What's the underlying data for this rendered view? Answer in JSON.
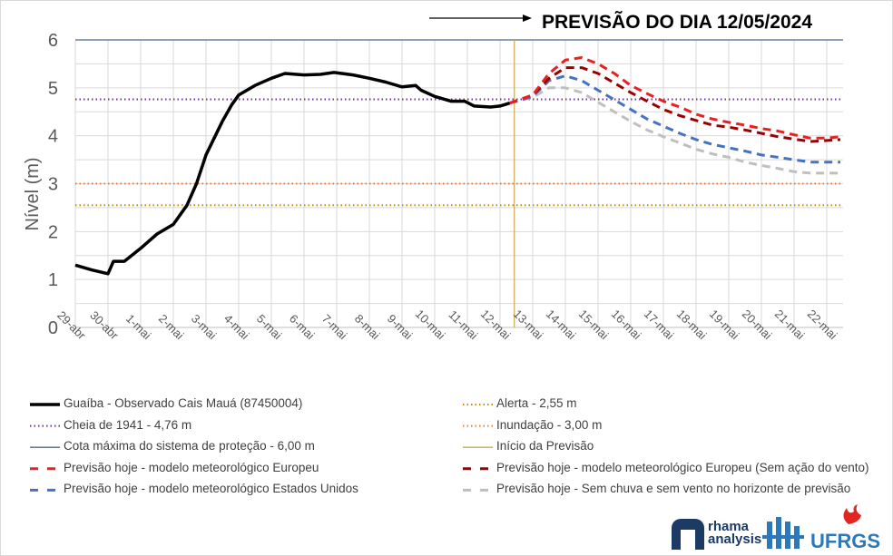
{
  "header": {
    "title": "PREVISÃO DO DIA 12/05/2024"
  },
  "logos": {
    "rhama": "rhama analysis",
    "iph": "IPH",
    "ufrgs": "UFRGS"
  },
  "chart_data": {
    "type": "line",
    "title": "PREVISÃO DO DIA 12/05/2024",
    "ylabel": "Nível (m)",
    "xlabel": "",
    "ylim": [
      0,
      6
    ],
    "yticks": [
      "0",
      "1",
      "2",
      "3",
      "4",
      "5",
      "6"
    ],
    "xlim": [
      "2024-04-29",
      "2024-05-22T12:00"
    ],
    "xticks": [
      "29-abr",
      "30-abr",
      "1-mai",
      "2-mai",
      "3-mai",
      "4-mai",
      "5-mai",
      "6-mai",
      "7-mai",
      "8-mai",
      "9-mai",
      "10-mai",
      "11-mai",
      "12-mai",
      "13-mai",
      "14-mai",
      "15-mai",
      "16-mai",
      "17-mai",
      "18-mai",
      "19-mai",
      "20-mai",
      "21-mai",
      "22-mai"
    ],
    "grid": true,
    "legend_position": "bottom",
    "reference_lines": [
      {
        "name": "Cheia de 1941 - 4,76 m",
        "y": 4.76,
        "color": "#7030a0",
        "style": "dotted"
      },
      {
        "name": "Alerta  - 2,55 m",
        "y": 2.55,
        "color": "#bf9000",
        "style": "dotted"
      },
      {
        "name": "Inundação - 3,00 m",
        "y": 3.0,
        "color": "#ed7d31",
        "style": "dotted"
      },
      {
        "name": "Cota máxima do sistema de proteção - 6,00 m",
        "y": 6.0,
        "color": "#44698f",
        "style": "solid"
      }
    ],
    "forecast_start": {
      "name": "Início da Previsão",
      "x": "2024-05-12T10:30",
      "color": "#c9a94a"
    },
    "series": [
      {
        "name": "Guaíba - Observado Cais Mauá (87450004)",
        "color": "#000000",
        "style": "solid",
        "x": [
          "2024-04-29",
          "2024-04-29T12:00",
          "2024-04-30",
          "2024-04-30T04:00",
          "2024-04-30T12:00",
          "2024-05-01",
          "2024-05-01T12:00",
          "2024-05-02",
          "2024-05-02T10:00",
          "2024-05-02T17:00",
          "2024-05-03",
          "2024-05-03T12:00",
          "2024-05-03T19:00",
          "2024-05-04",
          "2024-05-04T12:00",
          "2024-05-05",
          "2024-05-05T10:00",
          "2024-05-06",
          "2024-05-06T12:00",
          "2024-05-06T22:00",
          "2024-05-07T12:00",
          "2024-05-08",
          "2024-05-08T12:00",
          "2024-05-09",
          "2024-05-09T10:00",
          "2024-05-09T14:00",
          "2024-05-10",
          "2024-05-10T12:00",
          "2024-05-10T22:00",
          "2024-05-11T05:00",
          "2024-05-11T17:00",
          "2024-05-12",
          "2024-05-12T07:00"
        ],
        "y": [
          1.3,
          1.2,
          1.12,
          1.38,
          1.38,
          1.65,
          1.95,
          2.15,
          2.55,
          3.0,
          3.6,
          4.3,
          4.65,
          4.85,
          5.05,
          5.2,
          5.3,
          5.27,
          5.28,
          5.32,
          5.27,
          5.2,
          5.12,
          5.02,
          5.05,
          4.95,
          4.82,
          4.72,
          4.72,
          4.62,
          4.6,
          4.62,
          4.68
        ]
      },
      {
        "name": "Previsão hoje - modelo meteorológico Europeu",
        "color": "#e8201f",
        "style": "dashed",
        "x": [
          "2024-05-12T07:00",
          "2024-05-13",
          "2024-05-13T12:00",
          "2024-05-14",
          "2024-05-14T12:00",
          "2024-05-15",
          "2024-05-15T12:00",
          "2024-05-16",
          "2024-05-16T12:00",
          "2024-05-17",
          "2024-05-17T12:00",
          "2024-05-18",
          "2024-05-18T12:00",
          "2024-05-19",
          "2024-05-19T12:00",
          "2024-05-20",
          "2024-05-20T12:00",
          "2024-05-21",
          "2024-05-21T12:00",
          "2024-05-22",
          "2024-05-22T10:00"
        ],
        "y": [
          4.68,
          4.85,
          5.3,
          5.58,
          5.63,
          5.5,
          5.3,
          5.05,
          4.88,
          4.72,
          4.6,
          4.45,
          4.35,
          4.28,
          4.22,
          4.15,
          4.1,
          4.02,
          3.95,
          3.95,
          3.98
        ]
      },
      {
        "name": "Previsão hoje - modelo meteorológico Europeu (Sem ação do vento)",
        "color": "#9b0000",
        "style": "dashed",
        "x": [
          "2024-05-12T07:00",
          "2024-05-13",
          "2024-05-13T12:00",
          "2024-05-14",
          "2024-05-14T12:00",
          "2024-05-15",
          "2024-05-15T12:00",
          "2024-05-16",
          "2024-05-16T12:00",
          "2024-05-17",
          "2024-05-17T12:00",
          "2024-05-18",
          "2024-05-18T12:00",
          "2024-05-19",
          "2024-05-19T12:00",
          "2024-05-20",
          "2024-05-20T12:00",
          "2024-05-21",
          "2024-05-21T12:00",
          "2024-05-22",
          "2024-05-22T10:00"
        ],
        "y": [
          4.68,
          4.85,
          5.2,
          5.42,
          5.42,
          5.3,
          5.1,
          4.9,
          4.72,
          4.55,
          4.42,
          4.32,
          4.22,
          4.18,
          4.12,
          4.05,
          3.98,
          3.93,
          3.88,
          3.9,
          3.92
        ]
      },
      {
        "name": "Previsão hoje - modelo meteorológico Estados Unidos",
        "color": "#4472c4",
        "style": "dashed",
        "x": [
          "2024-05-12T07:00",
          "2024-05-13",
          "2024-05-13T12:00",
          "2024-05-14",
          "2024-05-14T12:00",
          "2024-05-15",
          "2024-05-15T12:00",
          "2024-05-16",
          "2024-05-16T12:00",
          "2024-05-17",
          "2024-05-17T12:00",
          "2024-05-18",
          "2024-05-18T12:00",
          "2024-05-19",
          "2024-05-19T12:00",
          "2024-05-20",
          "2024-05-20T12:00",
          "2024-05-21",
          "2024-05-21T12:00",
          "2024-05-22",
          "2024-05-22T10:00"
        ],
        "y": [
          4.68,
          4.82,
          5.15,
          5.25,
          5.15,
          4.95,
          4.75,
          4.55,
          4.35,
          4.2,
          4.05,
          3.92,
          3.82,
          3.75,
          3.68,
          3.6,
          3.55,
          3.5,
          3.45,
          3.45,
          3.45
        ]
      },
      {
        "name": "Previsão hoje - Sem chuva e sem vento no horizonte de previsão",
        "color": "#bfbfbf",
        "style": "dashed",
        "x": [
          "2024-05-12T07:00",
          "2024-05-13",
          "2024-05-13T12:00",
          "2024-05-14",
          "2024-05-14T12:00",
          "2024-05-15",
          "2024-05-15T12:00",
          "2024-05-16",
          "2024-05-16T12:00",
          "2024-05-17",
          "2024-05-17T12:00",
          "2024-05-18",
          "2024-05-18T12:00",
          "2024-05-19",
          "2024-05-19T12:00",
          "2024-05-20",
          "2024-05-20T12:00",
          "2024-05-21",
          "2024-05-21T12:00",
          "2024-05-22",
          "2024-05-22T10:00"
        ],
        "y": [
          4.68,
          4.8,
          5.0,
          5.0,
          4.9,
          4.7,
          4.5,
          4.3,
          4.12,
          3.98,
          3.85,
          3.72,
          3.62,
          3.55,
          3.45,
          3.38,
          3.32,
          3.25,
          3.22,
          3.22,
          3.22
        ]
      }
    ]
  },
  "legend": [
    {
      "label": "Guaíba - Observado Cais Mauá (87450004)",
      "color": "#000000",
      "style": "solid"
    },
    {
      "label": "Alerta  - 2,55 m",
      "color": "#bf9000",
      "style": "dotted"
    },
    {
      "label": "Cheia de 1941 - 4,76 m",
      "color": "#7030a0",
      "style": "dotted"
    },
    {
      "label": "Inundação - 3,00 m",
      "color": "#ed7d31",
      "style": "dotted"
    },
    {
      "label": "Cota máxima do sistema de proteção - 6,00 m",
      "color": "#44698f",
      "style": "solid"
    },
    {
      "label": "Início da Previsão",
      "color": "#c9a94a",
      "style": "solid"
    },
    {
      "label": "Previsão hoje - modelo meteorológico Europeu",
      "color": "#e8201f",
      "style": "dashed"
    },
    {
      "label": "Previsão hoje - modelo meteorológico Europeu (Sem ação do vento)",
      "color": "#9b0000",
      "style": "dashed"
    },
    {
      "label": "Previsão hoje - modelo meteorológico Estados Unidos",
      "color": "#4472c4",
      "style": "dashed"
    },
    {
      "label": "Previsão hoje - Sem chuva e sem vento no horizonte de previsão",
      "color": "#bfbfbf",
      "style": "dashed"
    }
  ]
}
